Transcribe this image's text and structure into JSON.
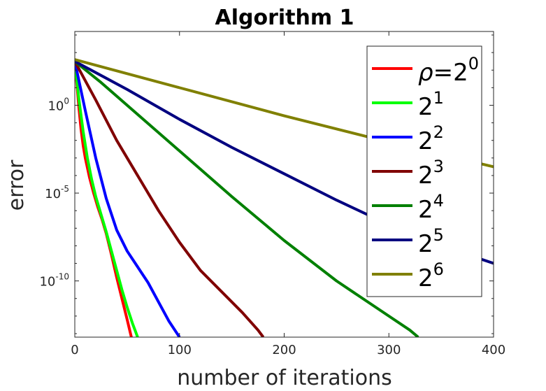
{
  "chart_data": {
    "type": "line",
    "title": "Algorithm 1",
    "xlabel": "number of iterations",
    "ylabel": "error",
    "xlim": [
      0,
      400
    ],
    "ylim_log10": [
      -13.2,
      4.2
    ],
    "yscale": "log",
    "grid": false,
    "legend_position": "top-right",
    "x_ticks": [
      {
        "value": 0,
        "label": "0"
      },
      {
        "value": 100,
        "label": "100"
      },
      {
        "value": 200,
        "label": "200"
      },
      {
        "value": 300,
        "label": "300"
      },
      {
        "value": 400,
        "label": "400"
      }
    ],
    "y_ticks": [
      {
        "exp": 0,
        "base": "10",
        "sup": "0"
      },
      {
        "exp": -5,
        "base": "10",
        "sup": "-5"
      },
      {
        "exp": -10,
        "base": "10",
        "sup": "-10"
      }
    ],
    "series": [
      {
        "name": "ρ=2",
        "sup": "0",
        "color": "#ff0000",
        "points": [
          [
            0,
            2.5
          ],
          [
            2,
            1.2
          ],
          [
            4,
            -0.2
          ],
          [
            6,
            -1.4
          ],
          [
            8,
            -2.3
          ],
          [
            10,
            -3.0
          ],
          [
            14,
            -4.1
          ],
          [
            18,
            -5.0
          ],
          [
            22,
            -5.8
          ],
          [
            26,
            -6.5
          ],
          [
            30,
            -7.3
          ],
          [
            35,
            -8.5
          ],
          [
            40,
            -9.8
          ],
          [
            45,
            -11.0
          ],
          [
            50,
            -12.2
          ],
          [
            54,
            -13.2
          ]
        ]
      },
      {
        "name": "2",
        "sup": "1",
        "color": "#00ff00",
        "points": [
          [
            0,
            2.5
          ],
          [
            4,
            0.3
          ],
          [
            8,
            -1.5
          ],
          [
            12,
            -3.0
          ],
          [
            16,
            -4.2
          ],
          [
            20,
            -5.2
          ],
          [
            25,
            -6.2
          ],
          [
            30,
            -7.2
          ],
          [
            35,
            -8.3
          ],
          [
            40,
            -9.4
          ],
          [
            45,
            -10.5
          ],
          [
            50,
            -11.5
          ],
          [
            55,
            -12.4
          ],
          [
            60,
            -13.2
          ]
        ]
      },
      {
        "name": "2",
        "sup": "2",
        "color": "#0000ff",
        "points": [
          [
            0,
            2.5
          ],
          [
            10,
            -0.3
          ],
          [
            20,
            -3.0
          ],
          [
            30,
            -5.3
          ],
          [
            40,
            -7.1
          ],
          [
            50,
            -8.3
          ],
          [
            60,
            -9.2
          ],
          [
            70,
            -10.1
          ],
          [
            80,
            -11.2
          ],
          [
            90,
            -12.3
          ],
          [
            100,
            -13.2
          ]
        ]
      },
      {
        "name": "2",
        "sup": "3",
        "color": "#800000",
        "points": [
          [
            0,
            2.5
          ],
          [
            20,
            0.3
          ],
          [
            40,
            -2.0
          ],
          [
            60,
            -4.0
          ],
          [
            80,
            -6.0
          ],
          [
            100,
            -7.8
          ],
          [
            120,
            -9.4
          ],
          [
            140,
            -10.6
          ],
          [
            160,
            -11.8
          ],
          [
            175,
            -12.8
          ],
          [
            180,
            -13.2
          ]
        ]
      },
      {
        "name": "2",
        "sup": "4",
        "color": "#008000",
        "points": [
          [
            0,
            2.5
          ],
          [
            25,
            1.3
          ],
          [
            50,
            0.0
          ],
          [
            100,
            -2.6
          ],
          [
            150,
            -5.2
          ],
          [
            200,
            -7.7
          ],
          [
            250,
            -10.0
          ],
          [
            300,
            -12.0
          ],
          [
            320,
            -12.8
          ],
          [
            328,
            -13.2
          ]
        ]
      },
      {
        "name": "2",
        "sup": "5",
        "color": "#000080",
        "points": [
          [
            0,
            2.5
          ],
          [
            50,
            0.9
          ],
          [
            100,
            -0.8
          ],
          [
            150,
            -2.4
          ],
          [
            200,
            -3.9
          ],
          [
            250,
            -5.4
          ],
          [
            300,
            -6.8
          ],
          [
            350,
            -8.0
          ],
          [
            400,
            -9.0
          ]
        ]
      },
      {
        "name": "2",
        "sup": "6",
        "color": "#808000",
        "points": [
          [
            0,
            2.6
          ],
          [
            100,
            1.0
          ],
          [
            200,
            -0.6
          ],
          [
            300,
            -2.1
          ],
          [
            400,
            -3.5
          ]
        ]
      }
    ]
  }
}
